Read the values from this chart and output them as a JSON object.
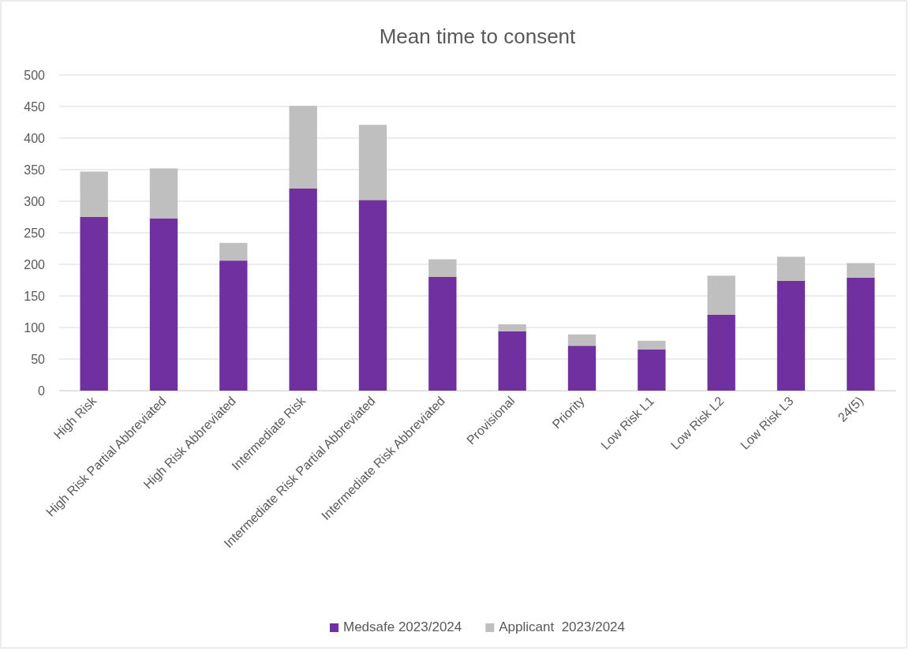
{
  "chart_data": {
    "type": "bar",
    "title": "Mean time to consent",
    "stacked": true,
    "categories": [
      "High Risk",
      "High Risk Partial Abbreviated",
      "High Risk Abbreviated",
      "Intermediate Risk",
      "Intermediate Risk Partial Abbreviated",
      "Intermediate Risk Abbreviated",
      "Provisional",
      "Priority",
      "Low Risk L1",
      "Low Risk L2",
      "Low Risk L3",
      "24(5)"
    ],
    "series": [
      {
        "name": "Medsafe 2023/2024",
        "color": "#7030a0",
        "values": [
          275,
          273,
          206,
          320,
          302,
          180,
          94,
          71,
          65,
          120,
          174,
          179
        ]
      },
      {
        "name": "Applicant  2023/2024",
        "color": "#bfbfbf",
        "values": [
          72,
          79,
          28,
          131,
          119,
          28,
          11,
          18,
          14,
          62,
          38,
          23
        ]
      }
    ],
    "ylim": [
      0,
      500
    ],
    "yticks": [
      0,
      50,
      100,
      150,
      200,
      250,
      300,
      350,
      400,
      450,
      500
    ],
    "grid": "y",
    "legend": "bottom"
  }
}
